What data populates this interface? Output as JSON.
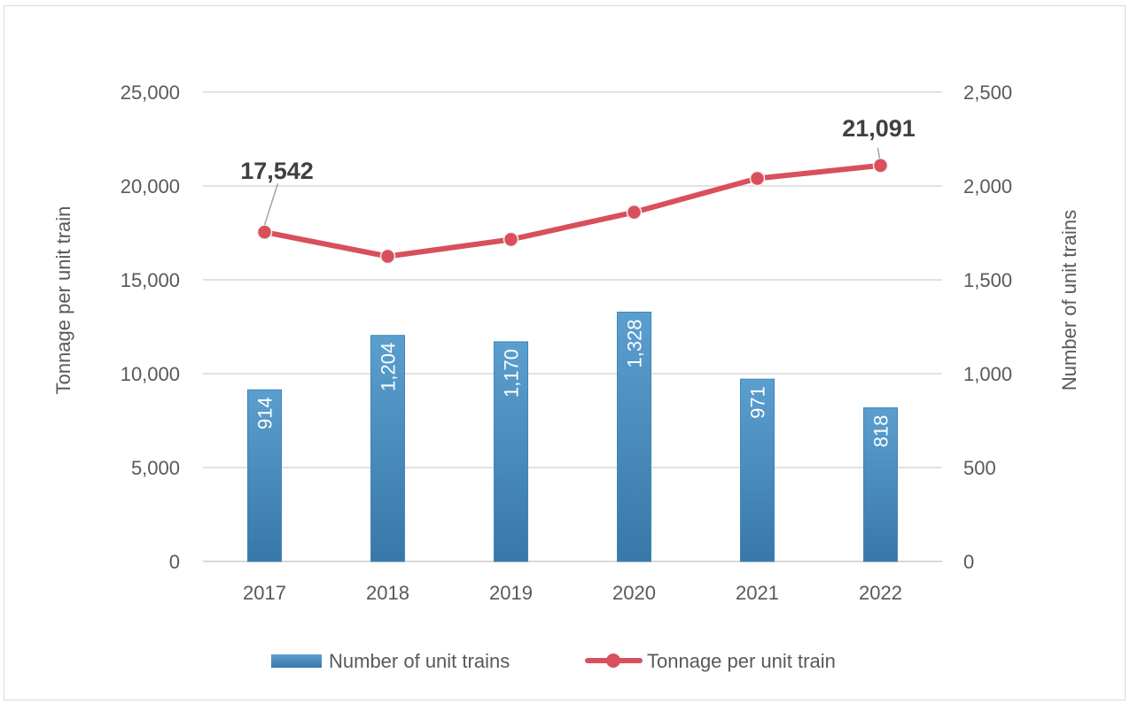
{
  "chart_data": {
    "type": "bar+line",
    "categories": [
      "2017",
      "2018",
      "2019",
      "2020",
      "2021",
      "2022"
    ],
    "series": [
      {
        "name": "Number of unit trains",
        "type": "bar",
        "axis": "right",
        "values": [
          914,
          1204,
          1170,
          1328,
          971,
          818
        ],
        "labels": [
          "914",
          "1,204",
          "1,170",
          "1,328",
          "971",
          "818"
        ]
      },
      {
        "name": "Tonnage per unit train",
        "type": "line",
        "axis": "left",
        "values": [
          17542,
          16250,
          17150,
          18600,
          20400,
          21091
        ],
        "labels": [
          "17,542",
          "",
          "",
          "",
          "",
          "21,091"
        ]
      }
    ],
    "left_axis": {
      "title": "Tonnage per unit train",
      "min": 0,
      "max": 25000,
      "ticks": [
        "0",
        "5,000",
        "10,000",
        "15,000",
        "20,000",
        "25,000"
      ],
      "tick_values": [
        0,
        5000,
        10000,
        15000,
        20000,
        25000
      ]
    },
    "right_axis": {
      "title": "Number of unit  trains",
      "min": 0,
      "max": 2500,
      "ticks": [
        "0",
        "500",
        "1,000",
        "1,500",
        "2,000",
        "2,500"
      ],
      "tick_values": [
        0,
        500,
        1000,
        1500,
        2000,
        2500
      ]
    },
    "grid": true,
    "legend": [
      "Number of unit trains",
      "Tonnage per unit train"
    ],
    "legend_position": "bottom",
    "colors": {
      "bar": "#4a8dbd",
      "bar_dark": "#3a7aab",
      "line": "#d94f5c",
      "grid": "#d9d9d9",
      "text": "#595959"
    }
  }
}
